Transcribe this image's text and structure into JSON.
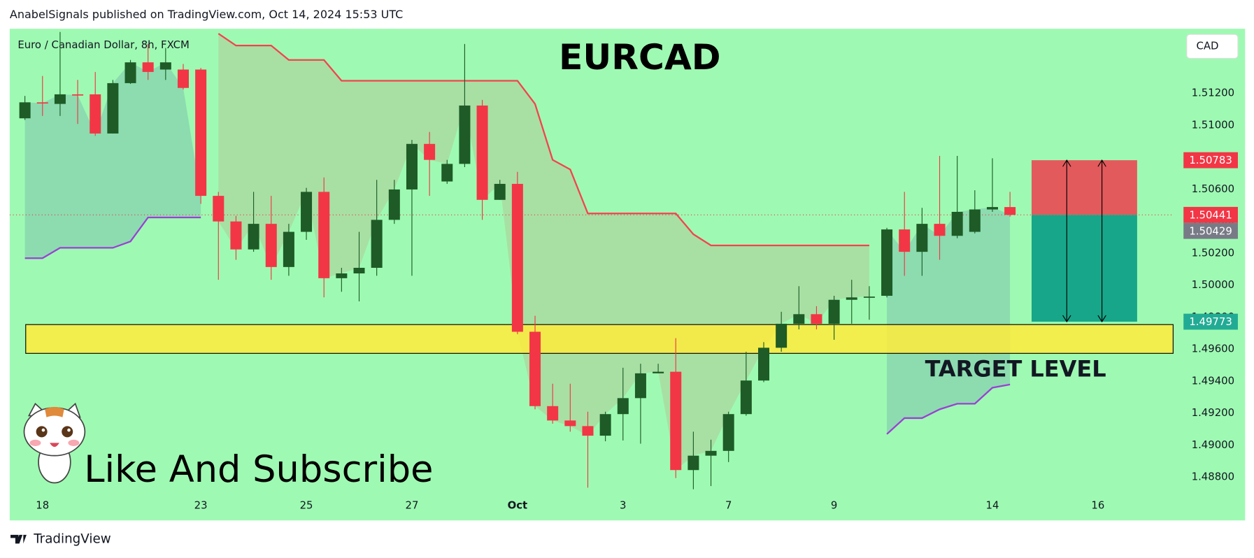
{
  "header": "AnabelSignals published on TradingView.com, Oct 14, 2024 15:53 UTC",
  "footer": "TradingView",
  "chart_data": {
    "type": "candlestick",
    "symbol": "Euro / Canadian Dollar, 8h, FXCM",
    "title": "EURCAD",
    "currency": "CAD",
    "annotation": "Like And Subscribe",
    "up_color": "#1e5b26",
    "down_color": "#f23645",
    "categories": [
      null,
      "18",
      null,
      null,
      null,
      null,
      null,
      null,
      null,
      null,
      "23",
      null,
      null,
      null,
      null,
      null,
      "25",
      null,
      null,
      null,
      null,
      null,
      "27",
      null,
      null,
      null,
      null,
      null,
      "Oct",
      null,
      null,
      null,
      null,
      null,
      "3",
      null,
      null,
      null,
      null,
      null,
      "7",
      null,
      null,
      null,
      null,
      null,
      "9",
      null,
      null,
      null,
      null,
      null,
      null,
      null,
      null,
      "14",
      null,
      null,
      null,
      null,
      null,
      "16",
      null,
      null,
      null,
      null
    ],
    "open": [
      1.51045,
      1.51145,
      1.51135,
      1.51195,
      1.51195,
      1.5095,
      1.51265,
      1.51395,
      1.5135,
      1.5135,
      1.5135,
      1.5056,
      1.504,
      1.50225,
      1.50385,
      1.50115,
      1.50335,
      1.50585,
      1.50045,
      1.50075,
      1.5011,
      1.5041,
      1.506,
      1.50885,
      1.5065,
      1.5076,
      1.51125,
      1.50535,
      1.50635,
      1.4971,
      1.49245,
      1.49155,
      1.4912,
      1.4906,
      1.49195,
      1.49295,
      1.4945,
      1.4946,
      1.48845,
      1.48935,
      1.48965,
      1.49195,
      1.49405,
      1.4961,
      1.4976,
      1.4982,
      1.4976,
      1.4991,
      1.49925,
      1.49935,
      1.5035,
      1.5021,
      1.50385,
      1.5031,
      1.50335,
      1.50475,
      1.5049,
      null,
      null,
      null,
      null,
      null,
      null,
      null,
      null,
      null
    ],
    "high": [
      1.51185,
      1.5131,
      1.51585,
      1.51285,
      1.51335,
      1.51285,
      1.5141,
      1.5151,
      1.51485,
      1.51385,
      1.5136,
      1.50585,
      1.50435,
      1.50585,
      1.5056,
      1.50385,
      1.5061,
      1.50675,
      1.5011,
      1.50335,
      1.5066,
      1.5066,
      1.5091,
      1.5096,
      1.50785,
      1.5151,
      1.5116,
      1.5066,
      1.5071,
      1.4981,
      1.49385,
      1.49385,
      1.4921,
      1.4921,
      1.49485,
      1.4951,
      1.4951,
      1.4967,
      1.49085,
      1.49035,
      1.4921,
      1.49585,
      1.49645,
      1.49835,
      1.49995,
      1.4987,
      1.49935,
      1.50035,
      1.49995,
      1.5036,
      1.50585,
      1.50485,
      1.5081,
      1.5081,
      1.50595,
      1.50795,
      1.50585,
      null,
      null,
      null,
      null,
      null,
      null,
      null,
      null,
      null
    ],
    "low": [
      1.51035,
      1.5106,
      1.5106,
      1.5101,
      1.50935,
      1.5095,
      1.5126,
      1.51285,
      1.51285,
      1.51225,
      1.5051,
      1.50035,
      1.5016,
      1.5021,
      1.50035,
      1.5006,
      1.50285,
      1.49925,
      1.4996,
      1.499,
      1.5006,
      1.50385,
      1.5006,
      1.5056,
      1.50635,
      1.5074,
      1.5041,
      1.50535,
      1.49695,
      1.49225,
      1.49135,
      1.49085,
      1.48735,
      1.49025,
      1.4903,
      1.4901,
      1.4945,
      1.48795,
      1.48725,
      1.48745,
      1.48895,
      1.49185,
      1.49395,
      1.49585,
      1.49725,
      1.49725,
      1.4966,
      1.4976,
      1.49785,
      1.49925,
      1.5006,
      1.5006,
      1.5016,
      1.50295,
      1.50325,
      1.5046,
      1.5043,
      null,
      null,
      null,
      null,
      null,
      null,
      null,
      null,
      null
    ],
    "close": [
      1.51145,
      1.5114,
      1.51195,
      1.5119,
      1.5095,
      1.51265,
      1.51395,
      1.51335,
      1.51395,
      1.51235,
      1.5056,
      1.504,
      1.50225,
      1.50385,
      1.50115,
      1.50335,
      1.50585,
      1.50045,
      1.50075,
      1.5011,
      1.5041,
      1.506,
      1.50885,
      1.50785,
      1.5076,
      1.51125,
      1.50535,
      1.50635,
      1.4971,
      1.49245,
      1.49155,
      1.4912,
      1.4906,
      1.49195,
      1.49295,
      1.4945,
      1.4946,
      1.48845,
      1.48935,
      1.48965,
      1.49195,
      1.49405,
      1.4961,
      1.4976,
      1.4982,
      1.4976,
      1.4991,
      1.49925,
      1.4993,
      1.5035,
      1.5021,
      1.50385,
      1.5031,
      1.5046,
      1.50475,
      1.5049,
      1.50441,
      null,
      null,
      null,
      null,
      null,
      null,
      null,
      null,
      null
    ],
    "series": [
      {
        "color": "#f5424e",
        "fill": "rgba(242,54,69,0.13)",
        "values": [
          null,
          null,
          null,
          null,
          null,
          null,
          null,
          null,
          null,
          null,
          null,
          1.51575,
          1.515,
          1.515,
          1.515,
          1.5141,
          1.5141,
          1.5141,
          1.5128,
          1.5128,
          1.5128,
          1.5128,
          1.5128,
          1.5128,
          1.5128,
          1.5128,
          1.5128,
          1.5128,
          1.5128,
          1.51135,
          1.50785,
          1.50725,
          1.5045,
          1.5045,
          1.5045,
          1.5045,
          1.5045,
          1.5045,
          1.5032,
          1.5025,
          1.5025,
          1.5025,
          1.5025,
          1.5025,
          1.5025,
          1.5025,
          1.5025,
          1.5025,
          1.5025,
          null,
          null,
          null,
          null,
          null,
          null,
          null,
          null,
          null,
          null,
          null,
          null,
          null,
          null,
          null,
          null,
          null
        ]
      },
      {
        "color": "#9c3fd6",
        "fill": "rgba(70,100,170,0.2)",
        "values": [
          1.5017,
          1.5017,
          1.50235,
          1.50235,
          1.50235,
          1.50235,
          1.50275,
          1.50425,
          1.50425,
          1.50425,
          1.50425,
          null,
          null,
          null,
          null,
          null,
          null,
          null,
          null,
          null,
          null,
          null,
          null,
          null,
          null,
          null,
          null,
          null,
          null,
          null,
          null,
          null,
          null,
          null,
          null,
          null,
          null,
          null,
          null,
          null,
          null,
          null,
          null,
          null,
          null,
          null,
          null,
          null,
          null,
          1.4907,
          1.4917,
          1.4917,
          1.49225,
          1.4926,
          1.4926,
          1.4936,
          1.4938,
          null,
          null,
          null,
          null,
          null,
          null,
          null,
          null,
          null
        ]
      }
    ],
    "zone": {
      "label": "TARGET LEVEL",
      "top": 1.49755,
      "bottom": 1.49575,
      "color": "#ffeb3b"
    },
    "position": {
      "entry": 1.50441,
      "stop": 1.50783,
      "target": 1.49773,
      "stop_color": "#e35a5c",
      "target_color": "#17a689"
    },
    "current_price": 1.50441,
    "price_labels": [
      {
        "value": 1.50783,
        "color": "#f23645"
      },
      {
        "value": 1.50441,
        "color": "#f23645"
      },
      {
        "value": 1.50429,
        "color": "#787b86"
      },
      {
        "value": 1.49773,
        "color": "#22ab94"
      }
    ],
    "ylim": [
      1.48535,
      1.51605
    ],
    "yticks": [
      {
        "value": 1.488,
        "label": "1.48800"
      },
      {
        "value": 1.49,
        "label": "1.49000"
      },
      {
        "value": 1.492,
        "label": "1.49200"
      },
      {
        "value": 1.494,
        "label": "1.49400"
      },
      {
        "value": 1.496,
        "label": "1.49600"
      },
      {
        "value": 1.498,
        "label": "1.49800"
      },
      {
        "value": 1.5,
        "label": "1.50000"
      },
      {
        "value": 1.502,
        "label": "1.50200"
      },
      {
        "value": 1.504,
        "label": "1.50400"
      },
      {
        "value": 1.506,
        "label": "1.50600"
      },
      {
        "value": 1.508,
        "label": "1.50800"
      },
      {
        "value": 1.51,
        "label": "1.51000"
      },
      {
        "value": 1.512,
        "label": "1.51200"
      }
    ],
    "grid": false
  }
}
